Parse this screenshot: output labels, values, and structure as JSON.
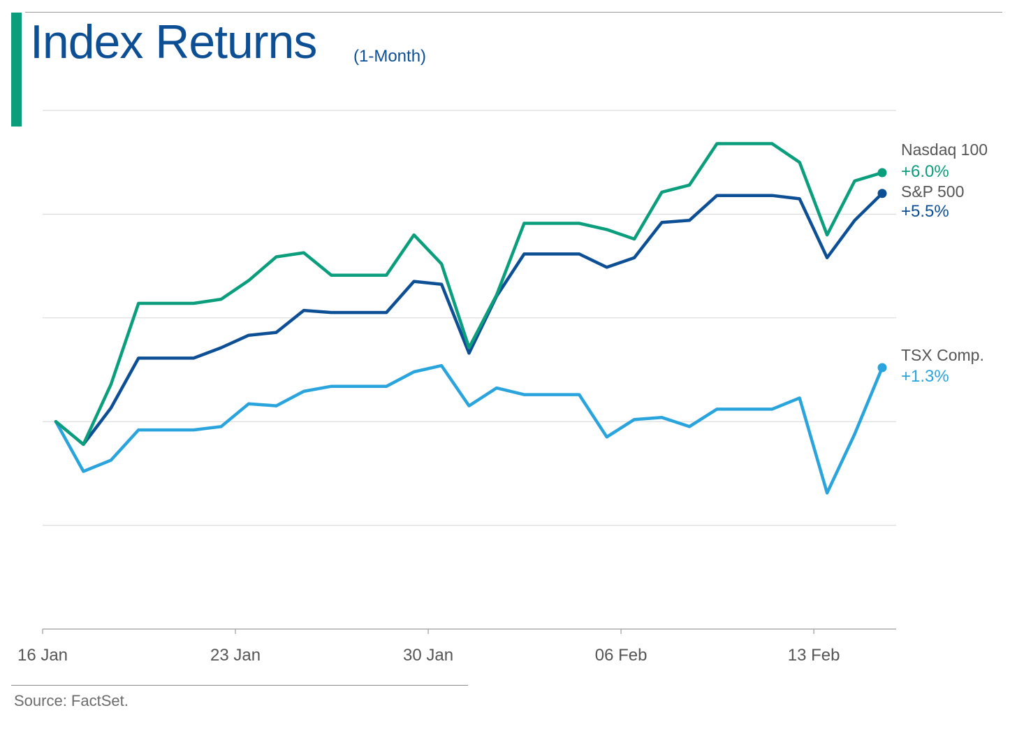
{
  "header": {
    "title": "Index Returns",
    "subtitle": "(1-Month)"
  },
  "footer": {
    "source": "Source: FactSet."
  },
  "colors": {
    "nasdaq": "#0a9e7c",
    "sp500": "#0d4f94",
    "tsx": "#2aa4dc",
    "grid": "#d6d6d6",
    "axis": "#9a9a9a",
    "label": "#555555"
  },
  "chart_data": {
    "type": "line",
    "title": "Index Returns",
    "subtitle": "(1-Month)",
    "xlabel": "",
    "ylabel": "",
    "x_tick_labels": [
      {
        "index": 0,
        "label": "16 Jan"
      },
      {
        "index": 7,
        "label": "23 Jan"
      },
      {
        "index": 14,
        "label": "30 Jan"
      },
      {
        "index": 21,
        "label": "06 Feb"
      },
      {
        "index": 28,
        "label": "13 Feb"
      }
    ],
    "x": [
      "16 Jan",
      "17 Jan",
      "18 Jan",
      "19 Jan",
      "20 Jan",
      "21 Jan",
      "22 Jan",
      "23 Jan",
      "24 Jan",
      "25 Jan",
      "26 Jan",
      "27 Jan",
      "28 Jan",
      "29 Jan",
      "30 Jan",
      "31 Jan",
      "01 Feb",
      "02 Feb",
      "03 Feb",
      "04 Feb",
      "05 Feb",
      "06 Feb",
      "07 Feb",
      "08 Feb",
      "09 Feb",
      "10 Feb",
      "11 Feb",
      "12 Feb",
      "13 Feb",
      "14 Feb",
      "15 Feb"
    ],
    "ylim": [
      -5.0,
      7.5
    ],
    "y_gridlines": [
      -5.0,
      -2.5,
      0.0,
      2.5,
      5.0,
      7.5
    ],
    "y_tick_labels_shown": false,
    "grid": true,
    "legend": "end-of-line labels, right",
    "series": [
      {
        "name": "Nasdaq 100",
        "end_label": "+6.0%",
        "color": "#0a9e7c",
        "values": [
          0.0,
          -0.55,
          0.9,
          2.85,
          2.85,
          2.85,
          2.95,
          3.4,
          3.97,
          4.07,
          3.53,
          3.53,
          3.53,
          4.5,
          3.8,
          1.78,
          3.05,
          4.78,
          4.78,
          4.78,
          4.63,
          4.4,
          5.53,
          5.7,
          6.7,
          6.7,
          6.7,
          6.25,
          4.5,
          5.8,
          6.0
        ]
      },
      {
        "name": "S&P 500",
        "end_label": "+5.5%",
        "color": "#0d4f94",
        "values": [
          0.0,
          -0.55,
          0.33,
          1.53,
          1.53,
          1.53,
          1.78,
          2.08,
          2.15,
          2.68,
          2.63,
          2.63,
          2.63,
          3.38,
          3.31,
          1.65,
          3.02,
          4.04,
          4.04,
          4.04,
          3.72,
          3.95,
          4.8,
          4.85,
          5.45,
          5.45,
          5.45,
          5.37,
          3.95,
          4.85,
          5.5
        ]
      },
      {
        "name": "TSX Comp.",
        "end_label": "+1.3%",
        "color": "#2aa4dc",
        "values": [
          0.0,
          -1.2,
          -0.93,
          -0.2,
          -0.2,
          -0.2,
          -0.12,
          0.43,
          0.38,
          0.73,
          0.85,
          0.85,
          0.85,
          1.2,
          1.35,
          0.38,
          0.81,
          0.65,
          0.65,
          0.65,
          -0.37,
          0.05,
          0.1,
          -0.12,
          0.3,
          0.3,
          0.3,
          0.57,
          -1.72,
          -0.3,
          1.3
        ]
      }
    ]
  }
}
